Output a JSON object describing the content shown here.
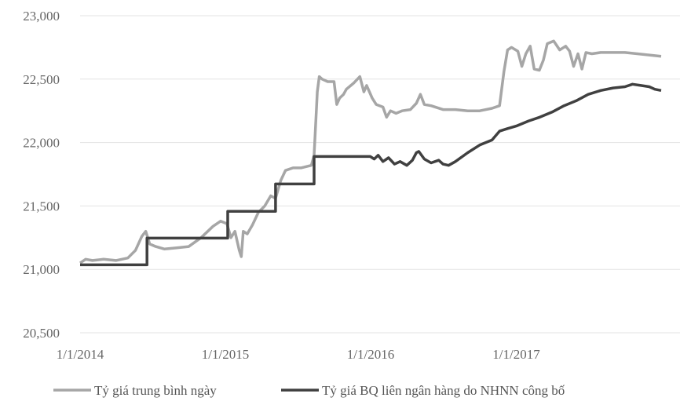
{
  "chart_data": {
    "type": "line",
    "title": "",
    "xlabel": "",
    "ylabel": "",
    "ylim": [
      20500,
      23000
    ],
    "xlim": [
      "2014-01-01",
      "2017-12-31"
    ],
    "y_ticks": [
      "20,500",
      "21,000",
      "21,500",
      "22,000",
      "22,500",
      "23,000"
    ],
    "y_tick_values": [
      20500,
      21000,
      21500,
      22000,
      22500,
      23000
    ],
    "x_ticks": [
      "1/1/2014",
      "1/1/2015",
      "1/1/2016",
      "1/1/2017"
    ],
    "x_tick_values": [
      "2014-01-01",
      "2015-01-01",
      "2016-01-01",
      "2017-01-01"
    ],
    "grid": "horizontal",
    "legend_position": "bottom",
    "series": [
      {
        "name": "Tỷ giá trung bình ngày",
        "color": "#a6a6a6",
        "points": [
          [
            "2014-01-01",
            21050
          ],
          [
            "2014-01-15",
            21080
          ],
          [
            "2014-02-01",
            21070
          ],
          [
            "2014-03-01",
            21080
          ],
          [
            "2014-04-01",
            21070
          ],
          [
            "2014-05-01",
            21090
          ],
          [
            "2014-05-20",
            21150
          ],
          [
            "2014-06-05",
            21260
          ],
          [
            "2014-06-15",
            21300
          ],
          [
            "2014-06-25",
            21200
          ],
          [
            "2014-07-10",
            21180
          ],
          [
            "2014-08-01",
            21160
          ],
          [
            "2014-09-01",
            21170
          ],
          [
            "2014-10-01",
            21180
          ],
          [
            "2014-11-01",
            21250
          ],
          [
            "2014-12-01",
            21340
          ],
          [
            "2014-12-20",
            21380
          ],
          [
            "2015-01-05",
            21360
          ],
          [
            "2015-01-15",
            21250
          ],
          [
            "2015-01-25",
            21300
          ],
          [
            "2015-02-05",
            21150
          ],
          [
            "2015-02-10",
            21100
          ],
          [
            "2015-02-15",
            21300
          ],
          [
            "2015-02-25",
            21280
          ],
          [
            "2015-03-10",
            21350
          ],
          [
            "2015-03-25",
            21450
          ],
          [
            "2015-04-10",
            21500
          ],
          [
            "2015-04-25",
            21580
          ],
          [
            "2015-05-07",
            21560
          ],
          [
            "2015-05-20",
            21700
          ],
          [
            "2015-06-01",
            21780
          ],
          [
            "2015-06-20",
            21800
          ],
          [
            "2015-07-10",
            21800
          ],
          [
            "2015-08-05",
            21820
          ],
          [
            "2015-08-12",
            21900
          ],
          [
            "2015-08-20",
            22400
          ],
          [
            "2015-08-25",
            22520
          ],
          [
            "2015-09-01",
            22500
          ],
          [
            "2015-09-15",
            22480
          ],
          [
            "2015-10-01",
            22480
          ],
          [
            "2015-10-08",
            22300
          ],
          [
            "2015-10-15",
            22350
          ],
          [
            "2015-10-25",
            22380
          ],
          [
            "2015-11-01",
            22420
          ],
          [
            "2015-11-20",
            22470
          ],
          [
            "2015-12-05",
            22520
          ],
          [
            "2015-12-15",
            22400
          ],
          [
            "2015-12-22",
            22450
          ],
          [
            "2016-01-05",
            22350
          ],
          [
            "2016-01-15",
            22300
          ],
          [
            "2016-02-01",
            22280
          ],
          [
            "2016-02-10",
            22200
          ],
          [
            "2016-02-20",
            22250
          ],
          [
            "2016-03-05",
            22230
          ],
          [
            "2016-03-20",
            22250
          ],
          [
            "2016-04-10",
            22260
          ],
          [
            "2016-04-25",
            22310
          ],
          [
            "2016-05-05",
            22380
          ],
          [
            "2016-05-15",
            22300
          ],
          [
            "2016-06-01",
            22290
          ],
          [
            "2016-07-01",
            22260
          ],
          [
            "2016-08-01",
            22260
          ],
          [
            "2016-09-01",
            22250
          ],
          [
            "2016-10-01",
            22250
          ],
          [
            "2016-11-01",
            22270
          ],
          [
            "2016-11-20",
            22290
          ],
          [
            "2016-12-01",
            22560
          ],
          [
            "2016-12-10",
            22730
          ],
          [
            "2016-12-20",
            22750
          ],
          [
            "2017-01-05",
            22720
          ],
          [
            "2017-01-15",
            22600
          ],
          [
            "2017-01-25",
            22700
          ],
          [
            "2017-02-05",
            22760
          ],
          [
            "2017-02-15",
            22580
          ],
          [
            "2017-02-28",
            22570
          ],
          [
            "2017-03-10",
            22650
          ],
          [
            "2017-03-20",
            22780
          ],
          [
            "2017-04-05",
            22800
          ],
          [
            "2017-04-20",
            22730
          ],
          [
            "2017-05-05",
            22760
          ],
          [
            "2017-05-15",
            22720
          ],
          [
            "2017-05-25",
            22600
          ],
          [
            "2017-06-05",
            22700
          ],
          [
            "2017-06-15",
            22580
          ],
          [
            "2017-06-25",
            22710
          ],
          [
            "2017-07-10",
            22700
          ],
          [
            "2017-08-01",
            22710
          ],
          [
            "2017-09-01",
            22710
          ],
          [
            "2017-10-01",
            22710
          ],
          [
            "2017-11-01",
            22700
          ],
          [
            "2017-12-01",
            22690
          ],
          [
            "2017-12-31",
            22680
          ]
        ]
      },
      {
        "name": "Tỷ giá BQ liên ngân hàng do NHNN công bố",
        "color": "#404040",
        "points": [
          [
            "2014-01-01",
            21036
          ],
          [
            "2014-06-18",
            21036
          ],
          [
            "2014-06-18",
            21246
          ],
          [
            "2015-01-07",
            21246
          ],
          [
            "2015-01-07",
            21458
          ],
          [
            "2015-05-07",
            21458
          ],
          [
            "2015-05-07",
            21673
          ],
          [
            "2015-08-12",
            21673
          ],
          [
            "2015-08-12",
            21890
          ],
          [
            "2015-11-01",
            21890
          ],
          [
            "2015-12-31",
            21890
          ],
          [
            "2016-01-10",
            21870
          ],
          [
            "2016-01-20",
            21900
          ],
          [
            "2016-02-01",
            21850
          ],
          [
            "2016-02-15",
            21880
          ],
          [
            "2016-03-01",
            21830
          ],
          [
            "2016-03-15",
            21850
          ],
          [
            "2016-04-01",
            21820
          ],
          [
            "2016-04-15",
            21860
          ],
          [
            "2016-04-25",
            21920
          ],
          [
            "2016-05-01",
            21930
          ],
          [
            "2016-05-15",
            21870
          ],
          [
            "2016-06-01",
            21840
          ],
          [
            "2016-06-20",
            21860
          ],
          [
            "2016-07-01",
            21830
          ],
          [
            "2016-07-15",
            21820
          ],
          [
            "2016-08-01",
            21850
          ],
          [
            "2016-09-01",
            21920
          ],
          [
            "2016-10-01",
            21980
          ],
          [
            "2016-11-01",
            22020
          ],
          [
            "2016-11-20",
            22090
          ],
          [
            "2016-12-10",
            22110
          ],
          [
            "2017-01-01",
            22130
          ],
          [
            "2017-02-01",
            22170
          ],
          [
            "2017-03-01",
            22200
          ],
          [
            "2017-04-01",
            22240
          ],
          [
            "2017-05-01",
            22290
          ],
          [
            "2017-06-01",
            22330
          ],
          [
            "2017-07-01",
            22380
          ],
          [
            "2017-08-01",
            22410
          ],
          [
            "2017-09-01",
            22430
          ],
          [
            "2017-10-01",
            22440
          ],
          [
            "2017-10-20",
            22460
          ],
          [
            "2017-11-10",
            22450
          ],
          [
            "2017-12-01",
            22440
          ],
          [
            "2017-12-15",
            22420
          ],
          [
            "2017-12-31",
            22410
          ]
        ]
      }
    ]
  }
}
